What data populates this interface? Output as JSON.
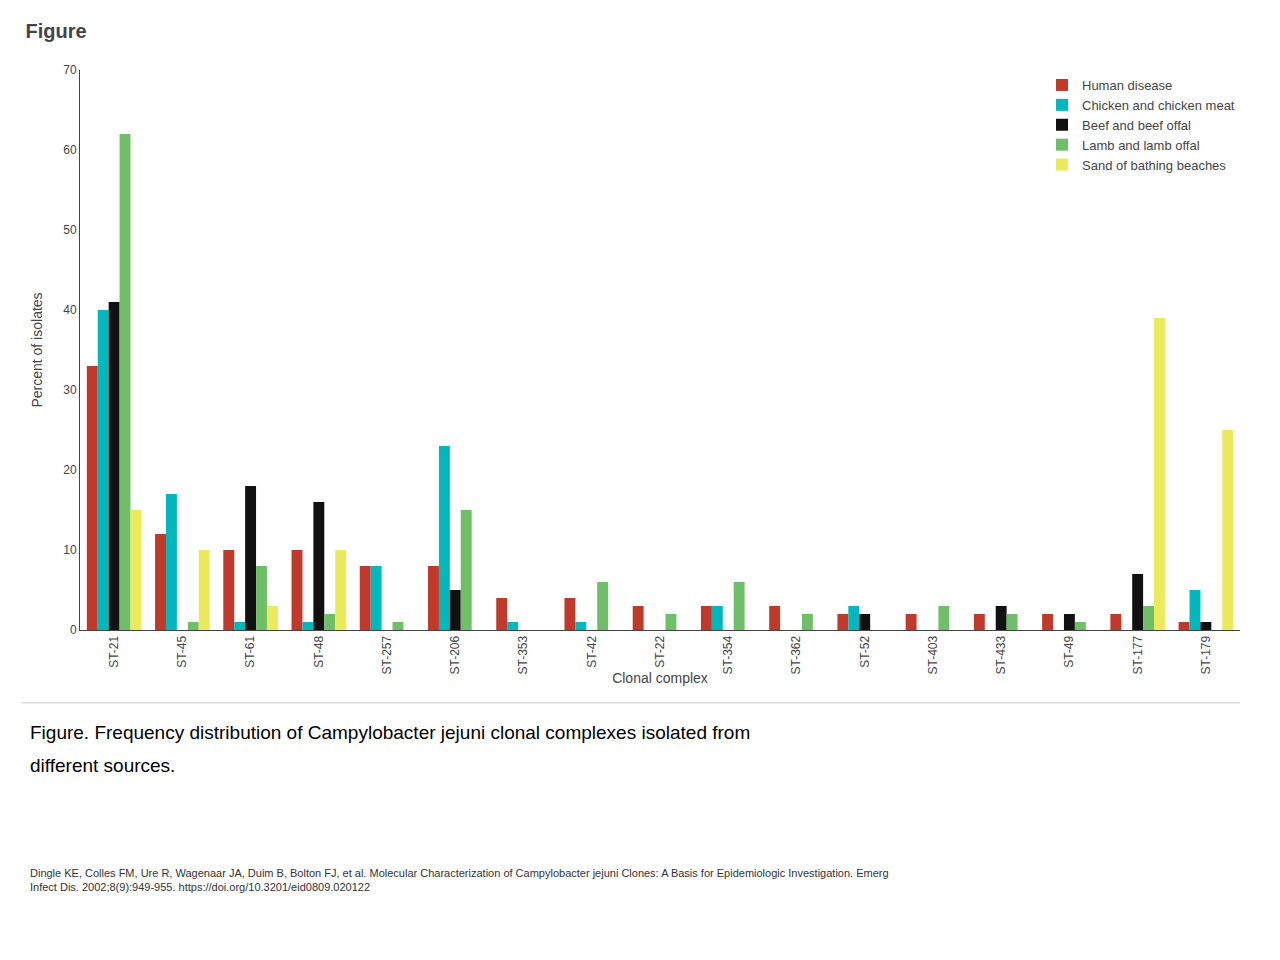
{
  "chart_data": {
    "type": "bar",
    "title": "Figure",
    "xlabel": "Clonal complex",
    "ylabel": "Percent of isolates",
    "categories": [
      "ST-21",
      "ST-45",
      "ST-61",
      "ST-48",
      "ST-257",
      "ST-206",
      "ST-353",
      "ST-42",
      "ST-22",
      "ST-354",
      "ST-362",
      "ST-52",
      "ST-403",
      "ST-433",
      "ST-49",
      "ST-177",
      "ST-179"
    ],
    "series": [
      {
        "name": "Human disease",
        "color": "#C0392B",
        "values": [
          33,
          12,
          10,
          10,
          8,
          8,
          4,
          4,
          3,
          3,
          3,
          2,
          2,
          2,
          2,
          2,
          1
        ]
      },
      {
        "name": "Chicken and chicken meat",
        "color": "#00B8BE",
        "values": [
          40,
          17,
          1,
          1,
          8,
          23,
          1,
          1,
          0,
          3,
          0,
          3,
          0,
          0,
          0,
          0,
          5
        ]
      },
      {
        "name": "Beef and beef offal",
        "color": "#111111",
        "values": [
          41,
          0,
          18,
          16,
          0,
          5,
          0,
          0,
          0,
          0,
          0,
          2,
          0,
          3,
          2,
          7,
          1
        ]
      },
      {
        "name": "Lamb and lamb offal",
        "color": "#6EBF67",
        "values": [
          62,
          1,
          8,
          2,
          1,
          15,
          0,
          6,
          2,
          6,
          2,
          0,
          3,
          2,
          1,
          3,
          0
        ]
      },
      {
        "name": "Sand of bathing beaches",
        "color": "#EAEA5A",
        "values": [
          15,
          10,
          3,
          10,
          0,
          0,
          0,
          0,
          0,
          0,
          0,
          0,
          0,
          0,
          0,
          39,
          25
        ]
      }
    ],
    "ylim": [
      0,
      70
    ],
    "yticks": [
      0,
      10,
      20,
      30,
      40,
      50,
      60,
      70
    ],
    "grid": false,
    "legend": "upper right",
    "annotations": [
      "Figure. Frequency distribution of Campylobacter jejuni clonal complexes isolated from",
      "different sources.",
      "Dingle KE, Colles FM, Ure R, Wagenaar JA, Duim B, Bolton FJ, et al. Molecular Characterization of Campylobacter jejuni Clones: A Basis for Epidemiologic Investigation. Emerg\nInfect Dis. 2002;8(9):949-955. https://doi.org/10.3201/eid0809.020122"
    ]
  }
}
